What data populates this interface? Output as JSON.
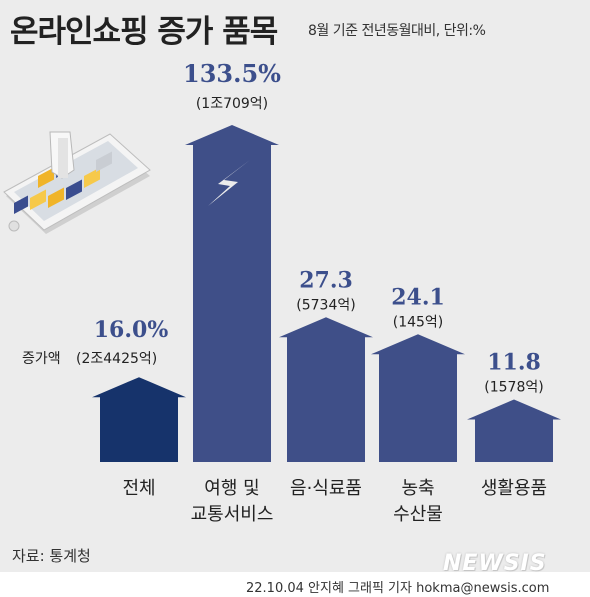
{
  "header": {
    "title": "온라인쇼핑 증가 품목",
    "subtitle": "8월 기준 전년동월대비, 단위:%"
  },
  "source": "자료: 통계청",
  "credit": "22.10.04 안지혜 그래픽 기자 hokma@newsis.com",
  "watermark": "NEWSIS",
  "increase_label": "증가액",
  "colors": {
    "total_bar": "#16336b",
    "item_bar": "#3f4f88",
    "value_text": "#3c4f8c",
    "background": "#ececec"
  },
  "chart_data": {
    "type": "bar",
    "title": "온라인쇼핑 증가 품목",
    "subtitle": "8월 기준 전년동월대비, 단위:%",
    "categories": [
      "전체",
      "여행 및 교통서비스",
      "음·식료품",
      "농축 수산물",
      "생활용품"
    ],
    "category_lines": [
      [
        "전체"
      ],
      [
        "여행 및",
        "교통서비스"
      ],
      [
        "음·식료품"
      ],
      [
        "농축",
        "수산물"
      ],
      [
        "생활용품"
      ]
    ],
    "values": [
      16.0,
      133.5,
      27.3,
      24.1,
      11.8
    ],
    "value_labels": [
      "16.0%",
      "133.5%",
      "27.3",
      "24.1",
      "11.8"
    ],
    "amount_labels": [
      "(2조4425억)",
      "(1조709억)",
      "(5734억)",
      "(145억)",
      "(1578억)"
    ],
    "broken_axis_category": "여행 및 교통서비스",
    "xlabel": "",
    "ylabel": ""
  }
}
